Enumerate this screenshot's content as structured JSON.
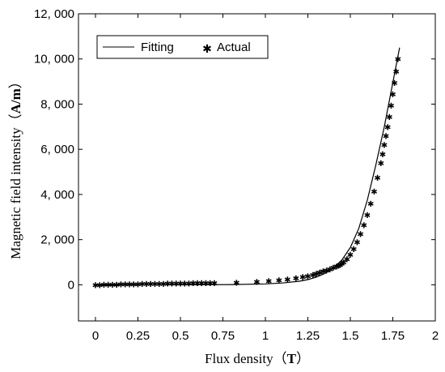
{
  "chart_data": {
    "type": "line",
    "xlabel": "Flux density（T）",
    "xlabel_main": "Flux density",
    "xlabel_unit": "T",
    "ylabel": "Magnetic field intensity（A/m）",
    "ylabel_main": "Magnetic field intensity",
    "ylabel_unit": "A/m",
    "xlim": [
      -0.1,
      2.0
    ],
    "ylim": [
      -1600,
      12000
    ],
    "xticks": [
      0,
      0.25,
      0.5,
      0.75,
      1,
      1.25,
      1.5,
      1.75,
      2
    ],
    "xtick_labels": [
      "0",
      "0.25",
      "0.5",
      "0.75",
      "1",
      "1.25",
      "1.5",
      "1.75",
      "2"
    ],
    "yticks": [
      0,
      2000,
      4000,
      6000,
      8000,
      10000,
      12000
    ],
    "ytick_labels": [
      "0",
      "2, 000",
      "4, 000",
      "6, 000",
      "8, 000",
      "10, 000",
      "12, 000"
    ],
    "legend": {
      "placement": "top-left",
      "entries": [
        "Fitting",
        "Actual"
      ]
    },
    "series": [
      {
        "name": "Fitting",
        "style": "line",
        "color": "#000000",
        "x": [
          0,
          0.2,
          0.4,
          0.6,
          0.8,
          1.0,
          1.1,
          1.2,
          1.25,
          1.3,
          1.35,
          1.4,
          1.45,
          1.5,
          1.55,
          1.6,
          1.65,
          1.7,
          1.75,
          1.79
        ],
        "y": [
          0,
          0,
          0,
          0,
          10,
          40,
          80,
          160,
          230,
          340,
          500,
          740,
          1100,
          1650,
          2500,
          3750,
          5300,
          7000,
          8950,
          10500
        ]
      },
      {
        "name": "Actual",
        "style": "marker",
        "color": "#000000",
        "x": [
          0,
          0.025,
          0.05,
          0.075,
          0.1,
          0.125,
          0.15,
          0.175,
          0.2,
          0.225,
          0.25,
          0.275,
          0.3,
          0.325,
          0.35,
          0.375,
          0.4,
          0.425,
          0.45,
          0.475,
          0.5,
          0.525,
          0.55,
          0.575,
          0.6,
          0.625,
          0.65,
          0.675,
          0.7,
          0.83,
          0.95,
          1.02,
          1.08,
          1.13,
          1.18,
          1.22,
          1.25,
          1.28,
          1.3,
          1.32,
          1.34,
          1.36,
          1.38,
          1.4,
          1.42,
          1.43,
          1.44,
          1.45,
          1.46,
          1.48,
          1.5,
          1.52,
          1.54,
          1.56,
          1.58,
          1.6,
          1.62,
          1.64,
          1.66,
          1.68,
          1.69,
          1.7,
          1.71,
          1.72,
          1.73,
          1.74,
          1.75,
          1.76,
          1.77,
          1.78
        ],
        "y": [
          0,
          5,
          10,
          14,
          18,
          22,
          26,
          30,
          34,
          37,
          40,
          43,
          46,
          49,
          52,
          55,
          58,
          61,
          64,
          67,
          70,
          73,
          76,
          79,
          82,
          85,
          88,
          92,
          95,
          110,
          140,
          170,
          210,
          250,
          300,
          350,
          400,
          450,
          500,
          550,
          600,
          650,
          700,
          760,
          820,
          860,
          900,
          950,
          1000,
          1150,
          1350,
          1600,
          1900,
          2250,
          2650,
          3100,
          3600,
          4150,
          4750,
          5400,
          5800,
          6200,
          6600,
          7000,
          7450,
          7950,
          8450,
          8950,
          9450,
          10000
        ]
      }
    ]
  }
}
